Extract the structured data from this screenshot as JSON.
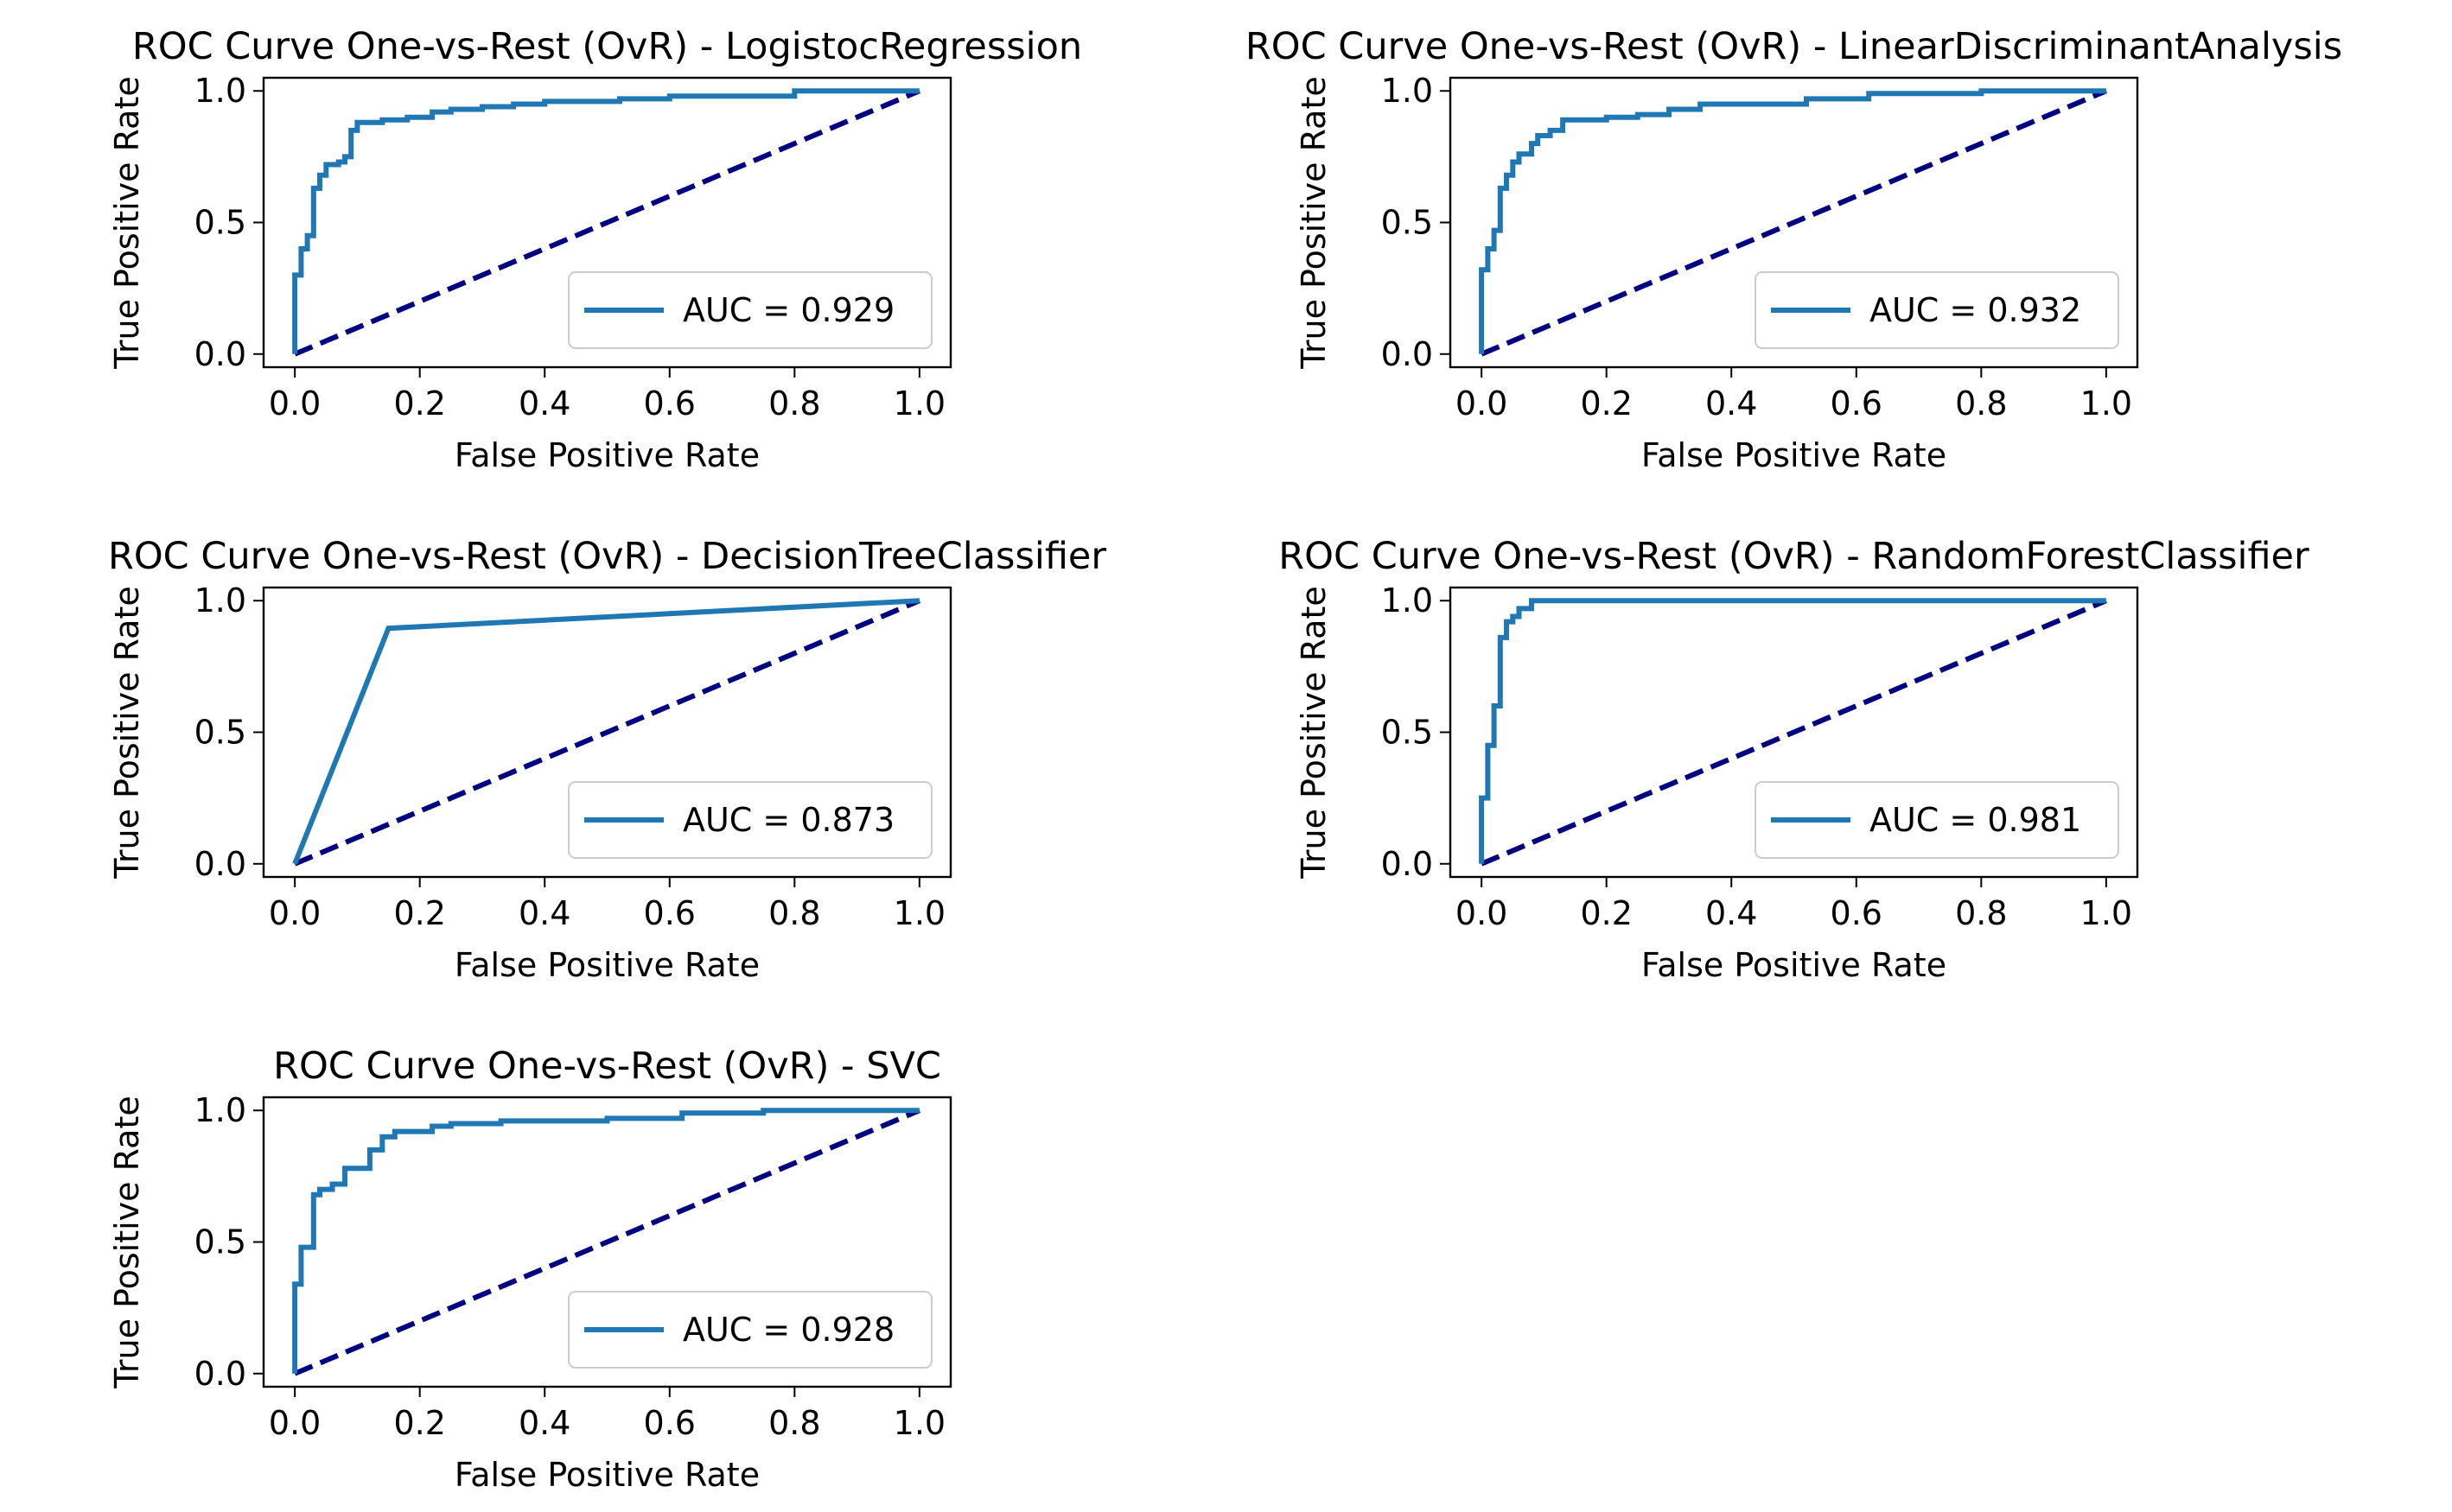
{
  "colors": {
    "curve": "#1f77b4",
    "diagonal": "#000080",
    "axes": "#000000",
    "legend_border": "#cccccc"
  },
  "chart_data": [
    {
      "type": "line",
      "title": "ROC Curve One-vs-Rest (OvR) - LogistocRegression",
      "xlabel": "False Positive Rate",
      "ylabel": "True Positive Rate",
      "xlim": [
        -0.05,
        1.05
      ],
      "ylim": [
        -0.05,
        1.05
      ],
      "xticks": [
        "0.0",
        "0.2",
        "0.4",
        "0.6",
        "0.8",
        "1.0"
      ],
      "yticks": [
        "0.0",
        "0.5",
        "1.0"
      ],
      "legend_position": "lower-right",
      "series": [
        {
          "name": "AUC = 0.929",
          "style": "step",
          "x": [
            0,
            0,
            0.01,
            0.01,
            0.02,
            0.02,
            0.03,
            0.03,
            0.04,
            0.04,
            0.05,
            0.05,
            0.07,
            0.07,
            0.08,
            0.08,
            0.09,
            0.09,
            0.1,
            0.1,
            0.14,
            0.14,
            0.18,
            0.18,
            0.22,
            0.22,
            0.25,
            0.25,
            0.3,
            0.3,
            0.35,
            0.35,
            0.4,
            0.4,
            0.52,
            0.52,
            0.6,
            0.6,
            0.8,
            0.8,
            1.0
          ],
          "y": [
            0,
            0.3,
            0.3,
            0.4,
            0.4,
            0.45,
            0.45,
            0.63,
            0.63,
            0.68,
            0.68,
            0.72,
            0.72,
            0.73,
            0.73,
            0.75,
            0.75,
            0.85,
            0.85,
            0.88,
            0.88,
            0.89,
            0.89,
            0.9,
            0.9,
            0.92,
            0.92,
            0.93,
            0.93,
            0.94,
            0.94,
            0.95,
            0.95,
            0.96,
            0.96,
            0.97,
            0.97,
            0.98,
            0.98,
            1.0,
            1.0
          ]
        }
      ]
    },
    {
      "type": "line",
      "title": "ROC Curve One-vs-Rest (OvR) - LinearDiscriminantAnalysis",
      "xlabel": "False Positive Rate",
      "ylabel": "True Positive Rate",
      "xlim": [
        -0.05,
        1.05
      ],
      "ylim": [
        -0.05,
        1.05
      ],
      "xticks": [
        "0.0",
        "0.2",
        "0.4",
        "0.6",
        "0.8",
        "1.0"
      ],
      "yticks": [
        "0.0",
        "0.5",
        "1.0"
      ],
      "legend_position": "lower-right",
      "series": [
        {
          "name": "AUC = 0.932",
          "style": "step",
          "x": [
            0,
            0,
            0.01,
            0.01,
            0.02,
            0.02,
            0.03,
            0.03,
            0.04,
            0.04,
            0.05,
            0.05,
            0.06,
            0.06,
            0.08,
            0.08,
            0.09,
            0.09,
            0.11,
            0.11,
            0.13,
            0.13,
            0.2,
            0.2,
            0.25,
            0.25,
            0.3,
            0.3,
            0.35,
            0.35,
            0.52,
            0.52,
            0.62,
            0.62,
            0.8,
            0.8,
            1.0
          ],
          "y": [
            0,
            0.32,
            0.32,
            0.4,
            0.4,
            0.47,
            0.47,
            0.63,
            0.63,
            0.68,
            0.68,
            0.73,
            0.73,
            0.76,
            0.76,
            0.8,
            0.8,
            0.83,
            0.83,
            0.85,
            0.85,
            0.89,
            0.89,
            0.9,
            0.9,
            0.91,
            0.91,
            0.93,
            0.93,
            0.95,
            0.95,
            0.97,
            0.97,
            0.99,
            0.99,
            1.0,
            1.0
          ]
        }
      ]
    },
    {
      "type": "line",
      "title": "ROC Curve One-vs-Rest (OvR) - DecisionTreeClassifier",
      "xlabel": "False Positive Rate",
      "ylabel": "True Positive Rate",
      "xlim": [
        -0.05,
        1.05
      ],
      "ylim": [
        -0.05,
        1.05
      ],
      "xticks": [
        "0.0",
        "0.2",
        "0.4",
        "0.6",
        "0.8",
        "1.0"
      ],
      "yticks": [
        "0.0",
        "0.5",
        "1.0"
      ],
      "legend_position": "lower-right",
      "series": [
        {
          "name": "AUC = 0.873",
          "style": "line",
          "x": [
            0,
            0.15,
            1.0
          ],
          "y": [
            0,
            0.895,
            1.0
          ]
        }
      ]
    },
    {
      "type": "line",
      "title": "ROC Curve One-vs-Rest (OvR) - RandomForestClassifier",
      "xlabel": "False Positive Rate",
      "ylabel": "True Positive Rate",
      "xlim": [
        -0.05,
        1.05
      ],
      "ylim": [
        -0.05,
        1.05
      ],
      "xticks": [
        "0.0",
        "0.2",
        "0.4",
        "0.6",
        "0.8",
        "1.0"
      ],
      "yticks": [
        "0.0",
        "0.5",
        "1.0"
      ],
      "legend_position": "lower-right",
      "series": [
        {
          "name": "AUC = 0.981",
          "style": "step",
          "x": [
            0,
            0,
            0.01,
            0.01,
            0.02,
            0.02,
            0.03,
            0.03,
            0.04,
            0.04,
            0.05,
            0.05,
            0.06,
            0.06,
            0.08,
            0.08,
            1.0
          ],
          "y": [
            0,
            0.25,
            0.25,
            0.45,
            0.45,
            0.6,
            0.6,
            0.86,
            0.86,
            0.92,
            0.92,
            0.94,
            0.94,
            0.97,
            0.97,
            1.0,
            1.0
          ]
        }
      ]
    },
    {
      "type": "line",
      "title": "ROC Curve One-vs-Rest (OvR) - SVC",
      "xlabel": "False Positive Rate",
      "ylabel": "True Positive Rate",
      "xlim": [
        -0.05,
        1.05
      ],
      "ylim": [
        -0.05,
        1.05
      ],
      "xticks": [
        "0.0",
        "0.2",
        "0.4",
        "0.6",
        "0.8",
        "1.0"
      ],
      "yticks": [
        "0.0",
        "0.5",
        "1.0"
      ],
      "legend_position": "lower-right",
      "series": [
        {
          "name": "AUC = 0.928",
          "style": "step",
          "x": [
            0,
            0,
            0.01,
            0.01,
            0.03,
            0.03,
            0.04,
            0.04,
            0.06,
            0.06,
            0.08,
            0.08,
            0.12,
            0.12,
            0.14,
            0.14,
            0.16,
            0.16,
            0.22,
            0.22,
            0.25,
            0.25,
            0.33,
            0.33,
            0.5,
            0.5,
            0.62,
            0.62,
            0.75,
            0.75,
            1.0
          ],
          "y": [
            0,
            0.34,
            0.34,
            0.48,
            0.48,
            0.68,
            0.68,
            0.7,
            0.7,
            0.72,
            0.72,
            0.78,
            0.78,
            0.85,
            0.85,
            0.9,
            0.9,
            0.92,
            0.92,
            0.94,
            0.94,
            0.95,
            0.95,
            0.96,
            0.96,
            0.97,
            0.97,
            0.99,
            0.99,
            1.0,
            1.0
          ]
        }
      ]
    }
  ]
}
